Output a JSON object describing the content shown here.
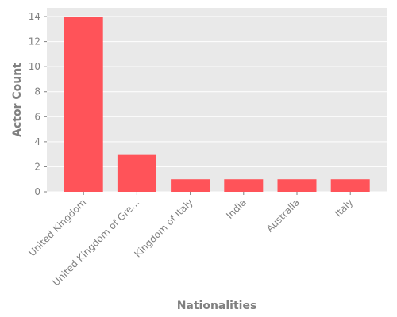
{
  "chart_data": {
    "type": "bar",
    "categories": [
      "United Kingdom",
      "United Kingdom of Gre…",
      "Kingdom of Italy",
      "India",
      "Australia",
      "Italy"
    ],
    "values": [
      14,
      3,
      1,
      1,
      1,
      1
    ],
    "title": "",
    "xlabel": "Nationalities",
    "ylabel": "Actor Count",
    "ylim": [
      0,
      14.7
    ],
    "yticks": [
      0,
      2,
      4,
      6,
      8,
      10,
      12,
      14
    ],
    "grid": true,
    "legend": "none",
    "bar_color": "#ff5359",
    "background_color": "#e9e9e9",
    "grid_color": "#ffffff",
    "text_color": "#808080"
  }
}
